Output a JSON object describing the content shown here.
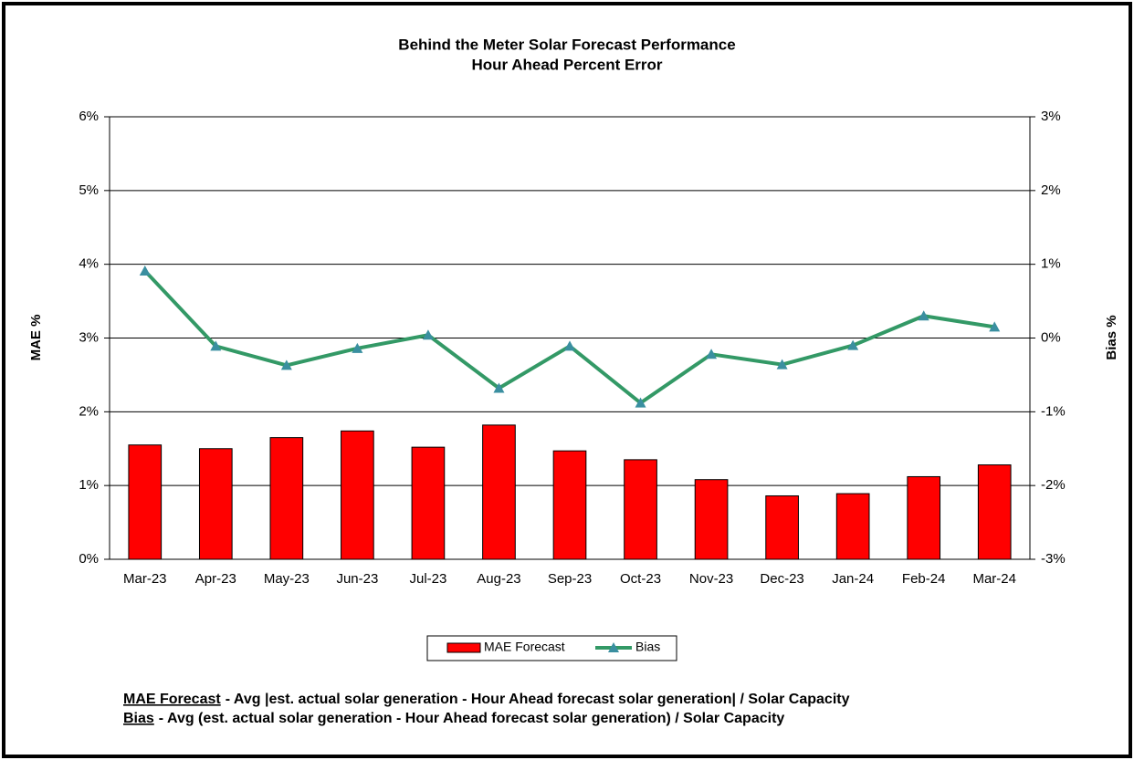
{
  "chart_data": {
    "type": "bar_line",
    "title": "Behind the Meter Solar Forecast Performance",
    "subtitle": "Hour Ahead Percent Error",
    "ylabel": "MAE %",
    "y2label": "Bias %",
    "categories": [
      "Mar-23",
      "Apr-23",
      "May-23",
      "Jun-23",
      "Jul-23",
      "Aug-23",
      "Sep-23",
      "Oct-23",
      "Nov-23",
      "Dec-23",
      "Jan-24",
      "Feb-24",
      "Mar-24"
    ],
    "series": [
      {
        "name": "MAE Forecast",
        "type": "bar",
        "color": "#ff0000",
        "values": [
          1.55,
          1.5,
          1.65,
          1.74,
          1.52,
          1.82,
          1.47,
          1.35,
          1.08,
          0.86,
          0.89,
          1.12,
          1.28
        ]
      },
      {
        "name": "Bias",
        "type": "line",
        "axis": "y2",
        "color": "#339966",
        "marker_color": "#3a8fa0",
        "values": [
          0.91,
          -0.11,
          -0.37,
          -0.14,
          0.04,
          -0.68,
          -0.11,
          -0.88,
          -0.22,
          -0.36,
          -0.1,
          0.3,
          0.15
        ]
      }
    ],
    "ylim": [
      0,
      6
    ],
    "yticks": [
      {
        "value": 0,
        "label": "0%"
      },
      {
        "value": 1,
        "label": "1%"
      },
      {
        "value": 2,
        "label": "2%"
      },
      {
        "value": 3,
        "label": "3%"
      },
      {
        "value": 4,
        "label": "4%"
      },
      {
        "value": 5,
        "label": "5%"
      },
      {
        "value": 6,
        "label": "6%"
      }
    ],
    "y2lim": [
      -3,
      3
    ],
    "y2ticks": [
      {
        "value": -3,
        "label": "-3%"
      },
      {
        "value": -2,
        "label": "-2%"
      },
      {
        "value": -1,
        "label": "-1%"
      },
      {
        "value": 0,
        "label": "0%"
      },
      {
        "value": 1,
        "label": "1%"
      },
      {
        "value": 2,
        "label": "2%"
      },
      {
        "value": 3,
        "label": "3%"
      }
    ],
    "grid": true,
    "legend": "bottom",
    "footnotes": [
      {
        "term": "MAE Forecast",
        "text": "- Avg |est. actual solar generation - Hour Ahead forecast solar generation| / Solar Capacity"
      },
      {
        "term": "Bias",
        "text": "- Avg (est. actual solar generation - Hour Ahead forecast solar generation) / Solar Capacity"
      }
    ]
  }
}
